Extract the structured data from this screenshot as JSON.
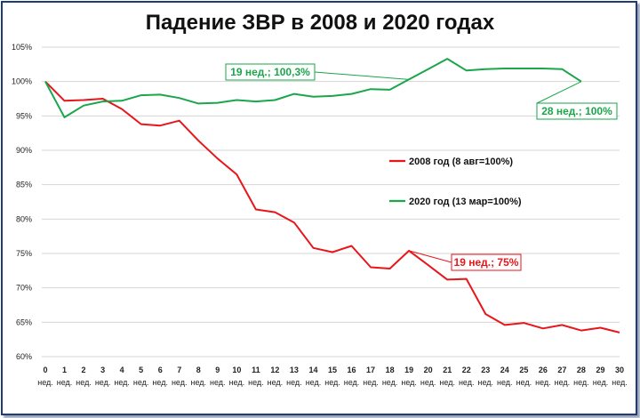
{
  "chart_data": {
    "type": "line",
    "title": "Падение ЗВР в 2008 и 2020 годах",
    "x": [
      0,
      1,
      2,
      3,
      4,
      5,
      6,
      7,
      8,
      9,
      10,
      11,
      12,
      13,
      14,
      15,
      16,
      17,
      18,
      19,
      20,
      21,
      22,
      23,
      24,
      25,
      26,
      27,
      28,
      29,
      30
    ],
    "x_unit_label": "нед.",
    "y_ticks": [
      "60%",
      "65%",
      "70%",
      "75%",
      "80%",
      "85%",
      "90%",
      "95%",
      "100%",
      "105%"
    ],
    "ylim": [
      60,
      105
    ],
    "grid": "horizontal",
    "legend_placement": "center-right",
    "series": [
      {
        "name": "2008 год (8 авг=100%)",
        "color": "#e8161b",
        "values": [
          100,
          97.2,
          97.3,
          97.5,
          96.0,
          93.8,
          93.6,
          94.3,
          91.4,
          88.8,
          86.5,
          81.4,
          81.0,
          79.5,
          75.8,
          75.2,
          76.1,
          73.0,
          72.8,
          75.4,
          73.3,
          71.2,
          71.3,
          66.2,
          64.6,
          64.9,
          64.1,
          64.6,
          63.8,
          64.2,
          63.5
        ]
      },
      {
        "name": "2020 год (13 мар=100%)",
        "color": "#1aa64a",
        "values": [
          100,
          94.8,
          96.5,
          97.1,
          97.2,
          98.0,
          98.1,
          97.6,
          96.8,
          96.9,
          97.3,
          97.1,
          97.3,
          98.2,
          97.8,
          97.9,
          98.2,
          98.9,
          98.8,
          100.3,
          101.8,
          103.3,
          101.6,
          101.8,
          101.9,
          101.9,
          101.9,
          101.8,
          100.0,
          null,
          null
        ]
      }
    ],
    "annotations": [
      {
        "text": "19 нед.; 100,3%",
        "series": 1,
        "x": 19,
        "y": 100.3,
        "color": "#1aa64a"
      },
      {
        "text": "28 нед.; 100%",
        "series": 1,
        "x": 28,
        "y": 100.0,
        "color": "#1aa64a"
      },
      {
        "text": "19 нед.; 75%",
        "series": 0,
        "x": 19,
        "y": 75.4,
        "color": "#e8161b"
      }
    ]
  }
}
